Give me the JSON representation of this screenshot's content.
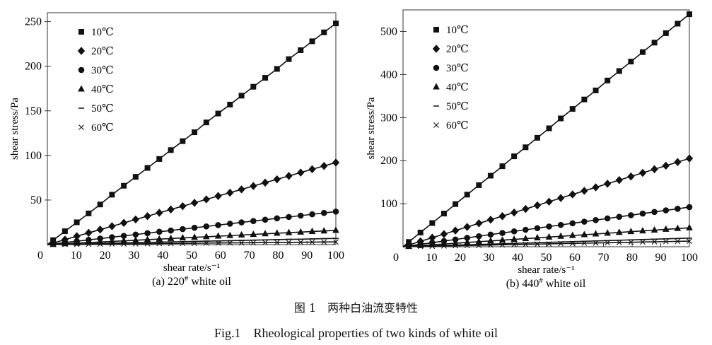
{
  "chart_data": [
    {
      "type": "line",
      "caption": "(a) 220",
      "caption_sup": "#",
      "caption_suffix": " white oil",
      "xlabel": "shear rate/s⁻¹",
      "ylabel": "shear stress/Pa",
      "xlim": [
        0,
        100
      ],
      "ylim": [
        0,
        260
      ],
      "xticks": [
        0,
        10,
        20,
        30,
        40,
        50,
        60,
        70,
        80,
        90,
        100
      ],
      "yticks": [
        50,
        100,
        150,
        200,
        250
      ],
      "legend": "top-left",
      "grid": false,
      "x": [
        2,
        6.1,
        10.2,
        14.3,
        18.3,
        22.4,
        26.5,
        30.6,
        34.7,
        38.8,
        42.8,
        46.9,
        51,
        55.1,
        59.2,
        63.3,
        67.3,
        71.4,
        75.5,
        79.6,
        83.7,
        87.8,
        91.8,
        95.9,
        100
      ],
      "series": [
        {
          "name": "10℃",
          "marker": "square",
          "values": [
            5,
            15,
            25,
            35,
            45,
            56,
            66,
            76,
            86,
            96,
            106,
            116,
            126,
            137,
            147,
            157,
            167,
            177,
            187,
            197,
            208,
            218,
            228,
            238,
            248
          ]
        },
        {
          "name": "20℃",
          "marker": "diamond",
          "values": [
            1.8,
            5.6,
            9.4,
            13.2,
            16.8,
            20.6,
            24.4,
            28.2,
            31.9,
            35.7,
            39.4,
            43.1,
            46.9,
            50.7,
            54.5,
            58.2,
            61.9,
            65.7,
            69.5,
            73.2,
            77,
            80.8,
            84.5,
            88.2,
            92
          ]
        },
        {
          "name": "30℃",
          "marker": "circle",
          "values": [
            0.7,
            2.3,
            3.8,
            5.3,
            6.8,
            8.3,
            9.8,
            11.3,
            12.8,
            14.4,
            15.8,
            17.4,
            18.9,
            20.4,
            21.9,
            23.4,
            24.9,
            26.4,
            27.9,
            29.5,
            31,
            32.5,
            34,
            35.5,
            37
          ]
        },
        {
          "name": "40℃",
          "marker": "triangle",
          "values": [
            0.3,
            1,
            1.6,
            2.3,
            2.9,
            3.6,
            4.2,
            4.9,
            5.6,
            6.2,
            6.8,
            7.5,
            8.2,
            8.8,
            9.5,
            10.1,
            10.8,
            11.4,
            12.1,
            12.7,
            13.4,
            14,
            14.7,
            15.3,
            16
          ]
        },
        {
          "name": "50℃",
          "marker": "dash",
          "values": [
            0.1,
            0.4,
            0.7,
            1,
            1.3,
            1.6,
            1.9,
            2.1,
            2.4,
            2.7,
            3,
            3.3,
            3.6,
            3.9,
            4.1,
            4.4,
            4.7,
            5,
            5.3,
            5.6,
            5.9,
            6.1,
            6.4,
            6.7,
            7
          ]
        },
        {
          "name": "60℃",
          "marker": "x",
          "values": [
            0.1,
            0.2,
            0.3,
            0.4,
            0.5,
            0.7,
            0.8,
            0.9,
            1,
            1.2,
            1.3,
            1.4,
            1.5,
            1.7,
            1.8,
            1.9,
            2,
            2.1,
            2.3,
            2.4,
            2.5,
            2.6,
            2.8,
            2.9,
            3
          ]
        }
      ]
    },
    {
      "type": "line",
      "caption": "(b) 440",
      "caption_sup": "#",
      "caption_suffix": " white oil",
      "xlabel": "shear rate/s⁻¹",
      "ylabel": "shear stress/Pa",
      "xlim": [
        0,
        100
      ],
      "ylim": [
        0,
        550
      ],
      "xticks": [
        0,
        10,
        20,
        30,
        40,
        50,
        60,
        70,
        80,
        90,
        100
      ],
      "yticks": [
        100,
        200,
        300,
        400,
        500
      ],
      "legend": "top-left",
      "grid": false,
      "x": [
        2,
        6.1,
        10.2,
        14.3,
        18.3,
        22.4,
        26.5,
        30.6,
        34.7,
        38.8,
        42.8,
        46.9,
        51,
        55.1,
        59.2,
        63.3,
        67.3,
        71.4,
        75.5,
        79.6,
        83.7,
        87.8,
        91.8,
        95.9,
        100
      ],
      "series": [
        {
          "name": "10℃",
          "marker": "square",
          "values": [
            11,
            33,
            55,
            77,
            99,
            121,
            143,
            165,
            187,
            210,
            231,
            253,
            275,
            298,
            320,
            342,
            363,
            386,
            408,
            430,
            452,
            474,
            496,
            518,
            540
          ]
        },
        {
          "name": "20℃",
          "marker": "diamond",
          "values": [
            4.1,
            12.5,
            20.9,
            29.3,
            37.5,
            45.9,
            54.3,
            62.7,
            71.1,
            79.5,
            87.7,
            96.1,
            104.6,
            113,
            121.4,
            129.8,
            138,
            146.4,
            154.8,
            163.2,
            171.6,
            180,
            188.2,
            196.6,
            205
          ]
        },
        {
          "name": "30℃",
          "marker": "circle",
          "values": [
            1.8,
            5.6,
            9.4,
            13.2,
            16.8,
            20.6,
            24.4,
            28.2,
            31.9,
            35.7,
            39.4,
            43.1,
            46.9,
            50.7,
            54.5,
            58.2,
            61.9,
            65.7,
            69.5,
            73.2,
            77,
            80.8,
            84.5,
            88.2,
            92
          ]
        },
        {
          "name": "40℃",
          "marker": "triangle",
          "values": [
            0.9,
            2.7,
            4.5,
            6.3,
            8.1,
            9.9,
            11.7,
            13.5,
            15.3,
            17.1,
            18.8,
            20.6,
            22.4,
            24.2,
            26,
            27.9,
            29.6,
            31.4,
            33.2,
            35,
            36.8,
            38.6,
            40.4,
            42.2,
            44
          ]
        },
        {
          "name": "50℃",
          "marker": "dash",
          "values": [
            0.4,
            1.2,
            2,
            2.9,
            3.7,
            4.5,
            5.3,
            6.1,
            6.9,
            7.8,
            8.6,
            9.4,
            10.2,
            11,
            11.8,
            12.7,
            13.5,
            14.3,
            15.1,
            15.9,
            16.7,
            17.6,
            18.4,
            19.2,
            20
          ]
        },
        {
          "name": "60℃",
          "marker": "x",
          "values": [
            0.3,
            0.8,
            1.3,
            1.9,
            2.4,
            2.9,
            3.4,
            4,
            4.5,
            5,
            5.6,
            6.1,
            6.6,
            7.2,
            7.7,
            8.2,
            8.7,
            9.3,
            9.8,
            10.3,
            10.9,
            11.4,
            11.9,
            12.5,
            13
          ]
        }
      ]
    }
  ],
  "figure": {
    "caption_cn": "图 1　两种白油流变特性",
    "caption_en": "Fig.1　Rheological properties of two kinds of white oil"
  }
}
